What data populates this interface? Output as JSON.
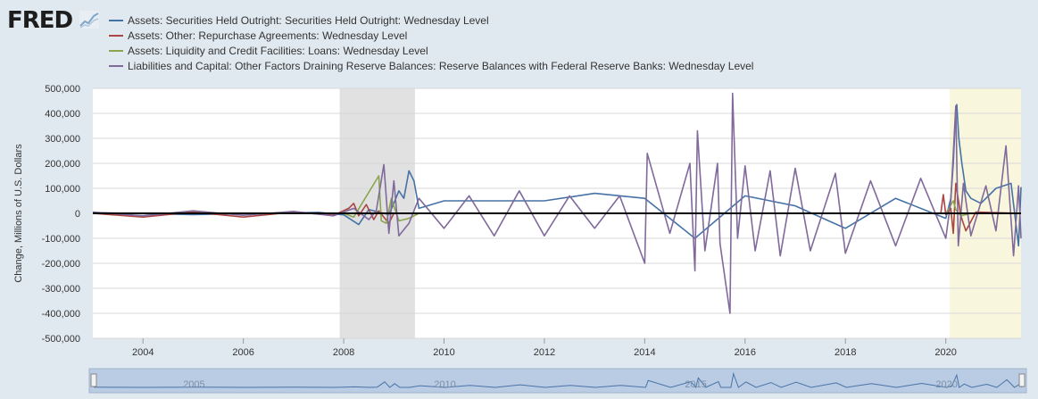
{
  "brand": {
    "name": "FRED"
  },
  "chart_data": {
    "type": "line",
    "ylabel": "Change, Millions of U.S. Dollars",
    "xlabel": "",
    "ylim": [
      -500000,
      500000
    ],
    "xlim": [
      2003.0,
      2021.5
    ],
    "y_ticks": [
      500000,
      400000,
      300000,
      200000,
      100000,
      0,
      -100000,
      -200000,
      -300000,
      -400000,
      -500000
    ],
    "y_tick_labels": [
      "500,000",
      "400,000",
      "300,000",
      "200,000",
      "100,000",
      "0",
      "-100,000",
      "-200,000",
      "-300,000",
      "-400,000",
      "-500,000"
    ],
    "x_ticks": [
      2004,
      2006,
      2008,
      2010,
      2012,
      2014,
      2016,
      2018,
      2020
    ],
    "x_tick_labels": [
      "2004",
      "2006",
      "2008",
      "2010",
      "2012",
      "2014",
      "2016",
      "2018",
      "2020"
    ],
    "grid": true,
    "legend_position": "top",
    "shaded_regions": [
      {
        "start": 2007.92,
        "end": 2009.42,
        "color": "#e1e1e1"
      },
      {
        "start": 2020.08,
        "end": 2021.5,
        "color": "#f8f6dc"
      }
    ],
    "series": [
      {
        "name": "Assets: Securities Held Outright: Securities Held Outright: Wednesday Level",
        "color": "#4572a7",
        "points": [
          [
            2003.0,
            3000
          ],
          [
            2005.0,
            -5000
          ],
          [
            2007.5,
            4000
          ],
          [
            2008.0,
            -6000
          ],
          [
            2008.3,
            -45000
          ],
          [
            2008.5,
            15000
          ],
          [
            2008.9,
            -5000
          ],
          [
            2009.0,
            40000
          ],
          [
            2009.1,
            90000
          ],
          [
            2009.2,
            60000
          ],
          [
            2009.3,
            170000
          ],
          [
            2009.4,
            130000
          ],
          [
            2009.5,
            20000
          ],
          [
            2010.0,
            50000
          ],
          [
            2012.0,
            50000
          ],
          [
            2013.0,
            80000
          ],
          [
            2014.0,
            60000
          ],
          [
            2015.0,
            -100000
          ],
          [
            2016.0,
            70000
          ],
          [
            2017.0,
            30000
          ],
          [
            2018.0,
            -60000
          ],
          [
            2019.0,
            60000
          ],
          [
            2020.0,
            -20000
          ],
          [
            2020.1,
            60000
          ],
          [
            2020.15,
            200000
          ],
          [
            2020.2,
            420000
          ],
          [
            2020.22,
            435000
          ],
          [
            2020.26,
            300000
          ],
          [
            2020.32,
            200000
          ],
          [
            2020.4,
            90000
          ],
          [
            2020.5,
            60000
          ],
          [
            2020.7,
            40000
          ],
          [
            2021.0,
            100000
          ],
          [
            2021.3,
            120000
          ],
          [
            2021.45,
            -130000
          ],
          [
            2021.5,
            105000
          ]
        ]
      },
      {
        "name": "Assets: Other: Repurchase Agreements: Wednesday Level",
        "color": "#aa4643",
        "points": [
          [
            2003.0,
            0
          ],
          [
            2004.0,
            -15000
          ],
          [
            2005.0,
            5000
          ],
          [
            2006.0,
            -15000
          ],
          [
            2007.0,
            5000
          ],
          [
            2007.8,
            -8000
          ],
          [
            2008.1,
            20000
          ],
          [
            2008.2,
            40000
          ],
          [
            2008.3,
            -10000
          ],
          [
            2008.45,
            35000
          ],
          [
            2008.6,
            -25000
          ],
          [
            2008.7,
            10000
          ],
          [
            2008.9,
            -40000
          ],
          [
            2009.0,
            0
          ],
          [
            2019.9,
            0
          ],
          [
            2019.95,
            75000
          ],
          [
            2020.0,
            -5000
          ],
          [
            2020.1,
            20000
          ],
          [
            2020.15,
            -80000
          ],
          [
            2020.2,
            120000
          ],
          [
            2020.3,
            -10000
          ],
          [
            2020.4,
            -70000
          ],
          [
            2020.6,
            5000
          ],
          [
            2021.5,
            0
          ]
        ]
      },
      {
        "name": "Assets: Liquidity and Credit Facilities: Loans: Wednesday Level",
        "color": "#89a54e",
        "points": [
          [
            2003.0,
            0
          ],
          [
            2008.0,
            0
          ],
          [
            2008.2,
            -15000
          ],
          [
            2008.7,
            150000
          ],
          [
            2008.75,
            -30000
          ],
          [
            2008.85,
            -40000
          ],
          [
            2008.95,
            60000
          ],
          [
            2009.1,
            -30000
          ],
          [
            2009.3,
            -20000
          ],
          [
            2009.5,
            0
          ],
          [
            2020.0,
            0
          ],
          [
            2020.15,
            50000
          ],
          [
            2020.2,
            15000
          ],
          [
            2020.3,
            -10000
          ],
          [
            2020.5,
            0
          ],
          [
            2021.5,
            0
          ]
        ]
      },
      {
        "name": "Liabilities and Capital: Other Factors Draining Reserve Balances: Reserve Balances with Federal Reserve Banks: Wednesday Level",
        "color": "#80699b",
        "points": [
          [
            2003.0,
            5000
          ],
          [
            2004.0,
            -10000
          ],
          [
            2005.0,
            10000
          ],
          [
            2006.0,
            -8000
          ],
          [
            2007.0,
            8000
          ],
          [
            2007.8,
            -10000
          ],
          [
            2008.2,
            20000
          ],
          [
            2008.5,
            -25000
          ],
          [
            2008.65,
            10000
          ],
          [
            2008.8,
            195000
          ],
          [
            2008.9,
            -80000
          ],
          [
            2009.0,
            130000
          ],
          [
            2009.1,
            -90000
          ],
          [
            2009.3,
            -40000
          ],
          [
            2009.5,
            60000
          ],
          [
            2010.0,
            -60000
          ],
          [
            2010.5,
            70000
          ],
          [
            2011.0,
            -90000
          ],
          [
            2011.5,
            90000
          ],
          [
            2012.0,
            -90000
          ],
          [
            2012.5,
            70000
          ],
          [
            2013.0,
            -60000
          ],
          [
            2013.5,
            70000
          ],
          [
            2014.0,
            -200000
          ],
          [
            2014.05,
            240000
          ],
          [
            2014.5,
            -80000
          ],
          [
            2014.9,
            200000
          ],
          [
            2015.0,
            -230000
          ],
          [
            2015.05,
            330000
          ],
          [
            2015.2,
            -150000
          ],
          [
            2015.45,
            200000
          ],
          [
            2015.5,
            -120000
          ],
          [
            2015.7,
            -400000
          ],
          [
            2015.75,
            480000
          ],
          [
            2015.85,
            -100000
          ],
          [
            2016.0,
            190000
          ],
          [
            2016.2,
            -150000
          ],
          [
            2016.5,
            170000
          ],
          [
            2016.7,
            -170000
          ],
          [
            2017.0,
            180000
          ],
          [
            2017.3,
            -150000
          ],
          [
            2017.8,
            160000
          ],
          [
            2018.0,
            -160000
          ],
          [
            2018.5,
            130000
          ],
          [
            2019.0,
            -130000
          ],
          [
            2019.5,
            140000
          ],
          [
            2020.0,
            -100000
          ],
          [
            2020.1,
            50000
          ],
          [
            2020.2,
            430000
          ],
          [
            2020.25,
            -130000
          ],
          [
            2020.35,
            120000
          ],
          [
            2020.5,
            -90000
          ],
          [
            2020.8,
            110000
          ],
          [
            2021.0,
            -70000
          ],
          [
            2021.2,
            270000
          ],
          [
            2021.35,
            -170000
          ],
          [
            2021.45,
            110000
          ],
          [
            2021.5,
            -100000
          ]
        ]
      }
    ]
  },
  "navigator": {
    "year_labels": [
      "2005",
      "2010",
      "2015",
      "2020"
    ]
  }
}
